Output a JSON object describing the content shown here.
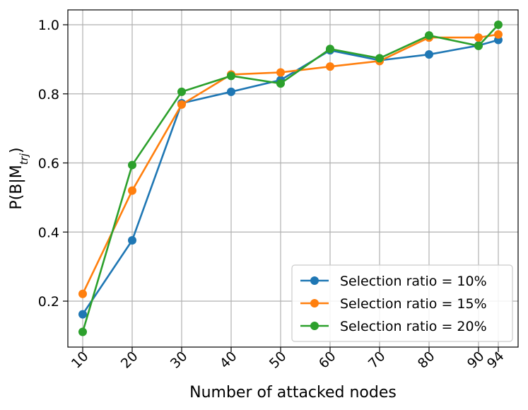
{
  "chart_data": {
    "type": "line",
    "xlabel": "Number of attacked nodes",
    "ylabel_parts": {
      "prefix": "P(B|M",
      "subscript": "trj",
      "suffix": ")"
    },
    "x": [
      10,
      20,
      30,
      40,
      50,
      60,
      70,
      80,
      90,
      94
    ],
    "xticks": [
      10,
      20,
      30,
      40,
      50,
      60,
      70,
      80,
      90,
      94
    ],
    "yticks": [
      0.2,
      0.4,
      0.6,
      0.8,
      1.0
    ],
    "ytick_labels": [
      "0.2",
      "0.4",
      "0.6",
      "0.8",
      "1.0"
    ],
    "xlim": [
      7,
      98
    ],
    "ylim": [
      0.067,
      1.043
    ],
    "grid": true,
    "legend_position": "lower-right",
    "series": [
      {
        "name": "Selection ratio = 10%",
        "color": "#1f77b4",
        "values": [
          0.162,
          0.376,
          0.773,
          0.806,
          0.84,
          0.926,
          0.897,
          0.914,
          0.94,
          0.956
        ]
      },
      {
        "name": "Selection ratio = 15%",
        "color": "#ff7f0e",
        "values": [
          0.221,
          0.52,
          0.769,
          0.856,
          0.862,
          0.879,
          0.895,
          0.963,
          0.963,
          0.972
        ]
      },
      {
        "name": "Selection ratio = 20%",
        "color": "#2ca02c",
        "values": [
          0.111,
          0.594,
          0.806,
          0.852,
          0.83,
          0.93,
          0.903,
          0.969,
          0.939,
          1.0
        ]
      }
    ]
  }
}
